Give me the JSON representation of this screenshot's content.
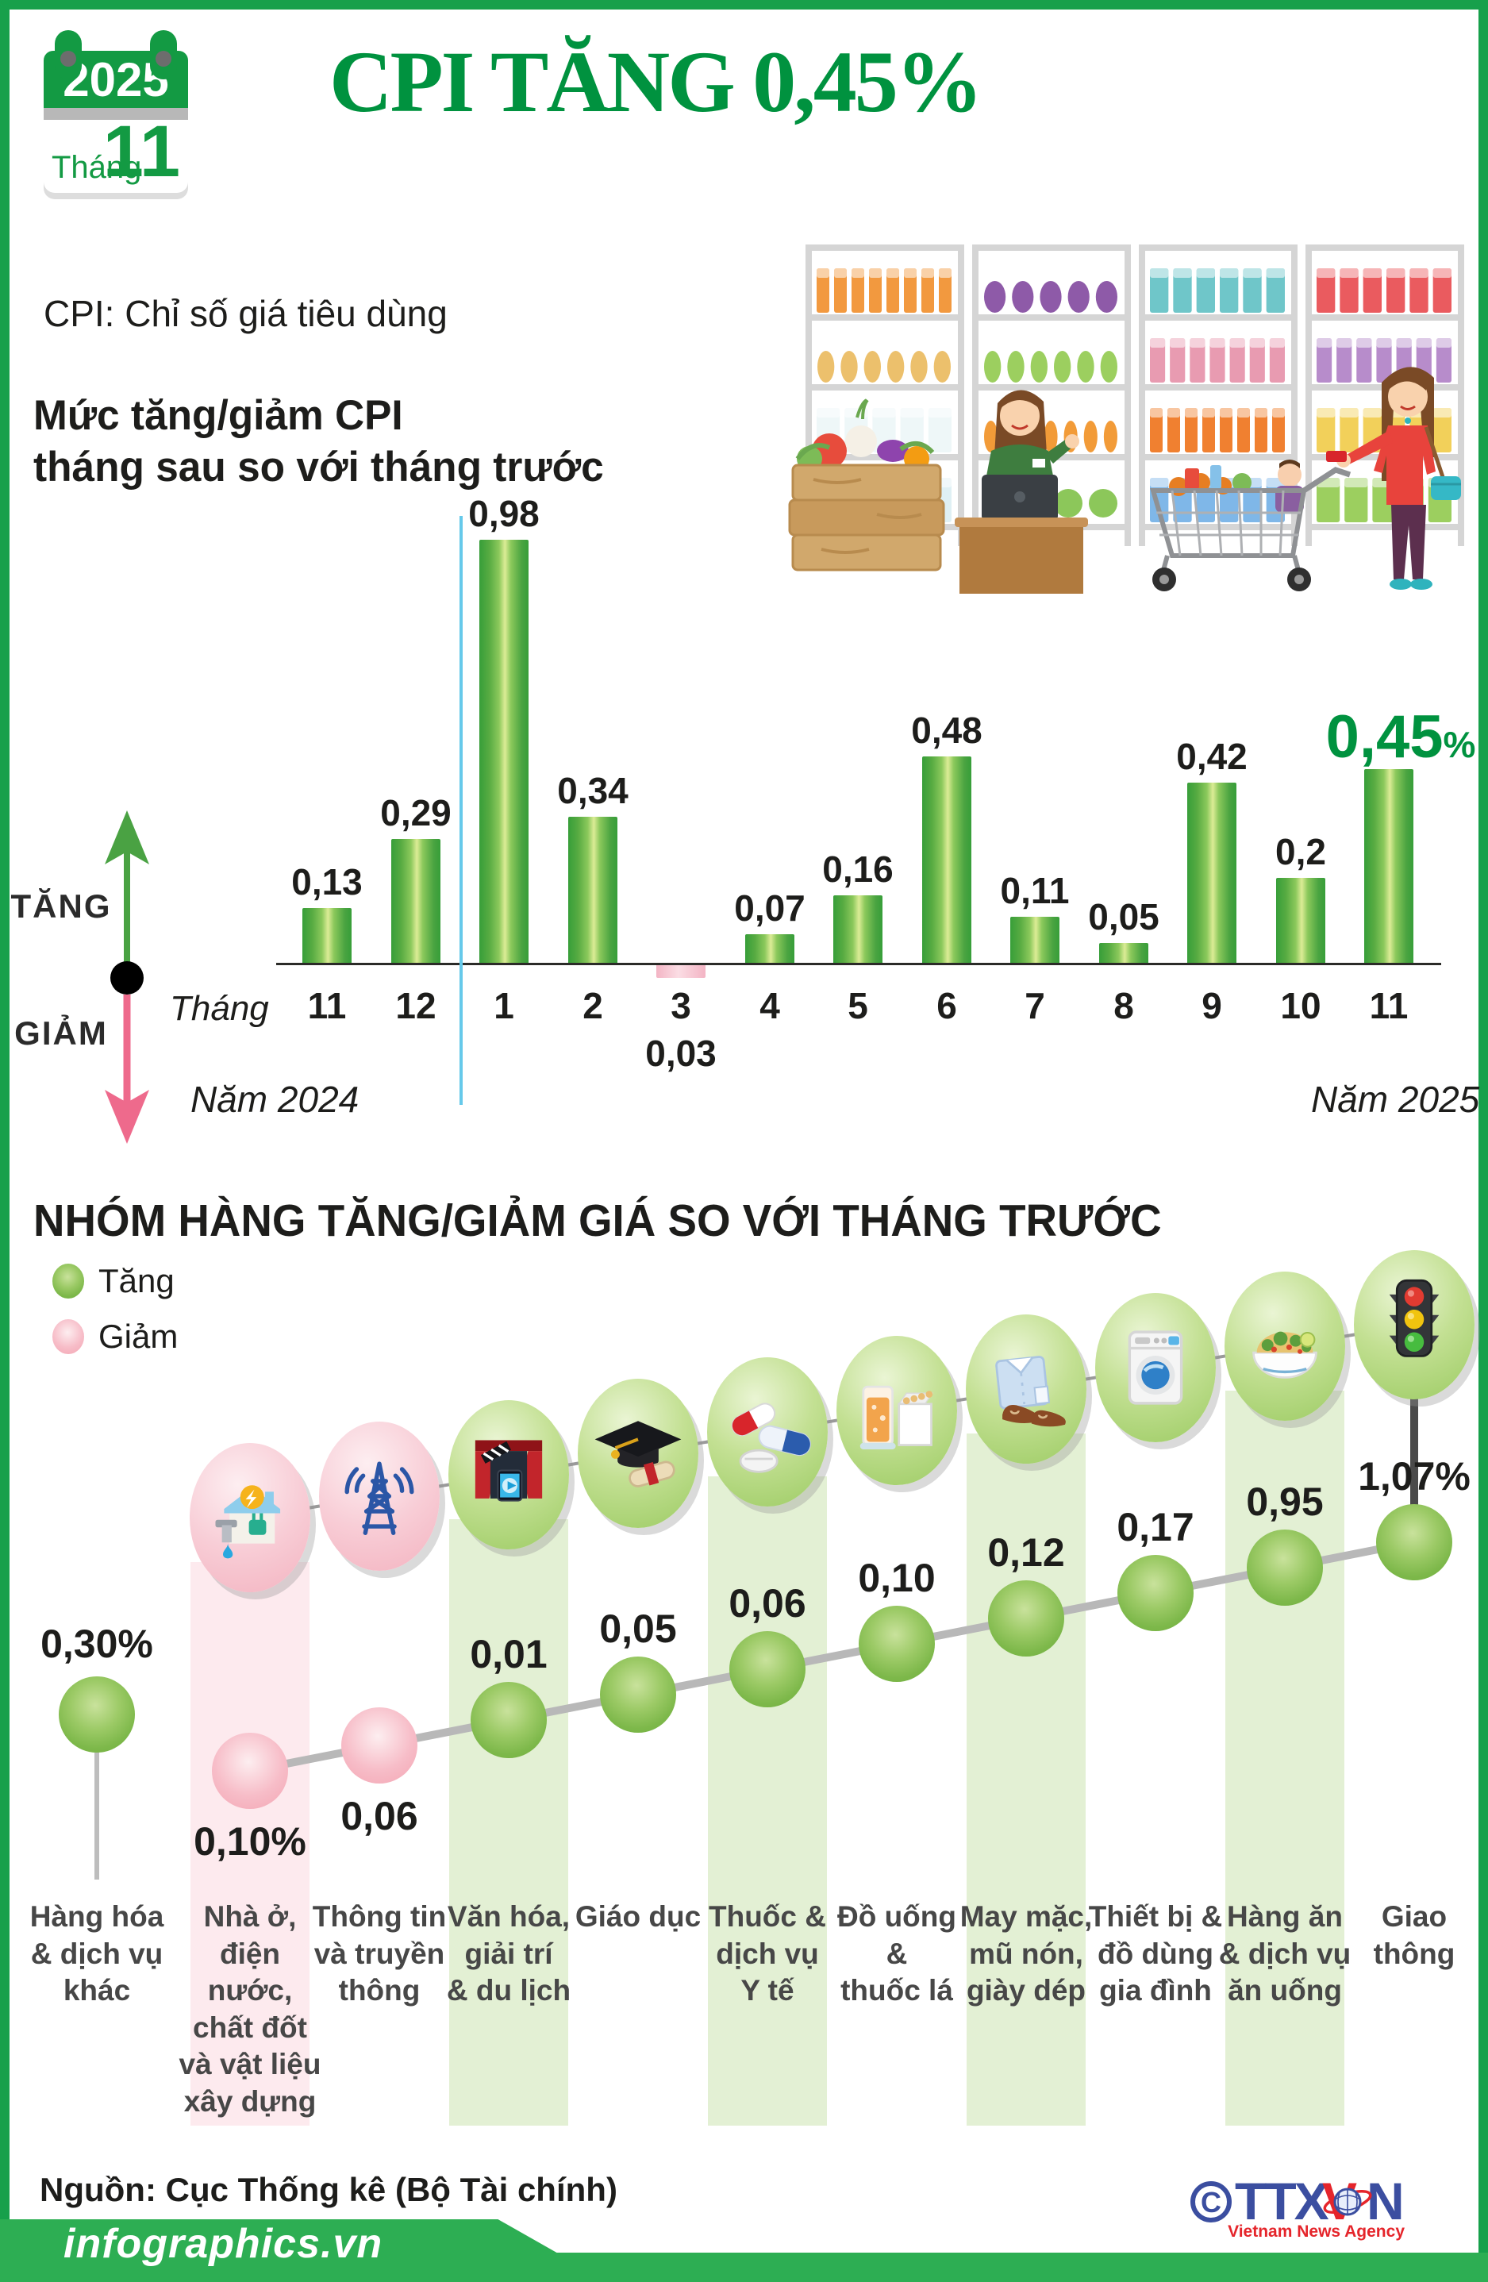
{
  "header": {
    "calendar": {
      "year": "2025",
      "month_word": "Tháng",
      "month_number": "11"
    },
    "title": "CPI TĂNG 0,45%",
    "subtitle": "CPI: Chỉ số giá tiêu dùng"
  },
  "section1": {
    "title_line1": "Mức tăng/giảm CPI",
    "title_line2": "tháng sau so với tháng trước",
    "legend_up": "TĂNG",
    "legend_down": "GIẢM",
    "axis_prefix": "Tháng",
    "year_left": "Năm 2024",
    "year_right": "Năm 2025"
  },
  "section2": {
    "title": "NHÓM HÀNG TĂNG/GIẢM GIÁ SO VỚI THÁNG TRƯỚC",
    "legend_up": "Tăng",
    "legend_down": "Giảm"
  },
  "footer": {
    "source": "Nguồn: Cục Thống kê (Bộ Tài chính)",
    "site": "infographics.vn",
    "copyright": "C",
    "agency_ttx": "TTX",
    "agency_v": "V",
    "agency_n": "N",
    "agency_sub": "Vietnam News Agency"
  },
  "colors": {
    "brand_green": "#00923f",
    "frame_green": "#17a04b",
    "bar_green_light": "#dcec96",
    "bar_green_dark": "#379e39",
    "bar_pink": "#f6c0ce",
    "dot_green": "#7db84a",
    "dot_pink": "#f5aebc",
    "band_green": "#e3f0d4",
    "band_pink": "#fdeaee",
    "divider_blue": "#66c9ea",
    "arrow_up_green": "#4aa243",
    "arrow_down_pink": "#ee6a8c",
    "line_gray": "#b9b9b9",
    "footer_green": "#2dae53",
    "ttxvn_blue": "#3b4ea0",
    "ttxvn_red": "#e5252b"
  },
  "chart_data": [
    {
      "type": "bar",
      "title": "Mức tăng/giảm CPI tháng sau so với tháng trước",
      "unit": "%",
      "xlabel": "Tháng",
      "categories": [
        "11",
        "12",
        "1",
        "2",
        "3",
        "4",
        "5",
        "6",
        "7",
        "8",
        "9",
        "10",
        "11"
      ],
      "values": [
        0.13,
        0.29,
        0.98,
        0.34,
        -0.03,
        0.07,
        0.16,
        0.48,
        0.11,
        0.05,
        0.42,
        0.2,
        0.45
      ],
      "labels": [
        "0,13",
        "0,29",
        "0,98",
        "0,34",
        "0,03",
        "0,07",
        "0,16",
        "0,48",
        "0,11",
        "0,05",
        "0,42",
        "0,2",
        "0,45%"
      ],
      "highlight_index": 12,
      "year_split_after_index": 1,
      "group_annotations": [
        "Năm 2024",
        "Năm 2025"
      ],
      "legend": {
        "up": "TĂNG",
        "down": "GIẢM"
      },
      "ylim": [
        -0.1,
        1.0
      ],
      "grid": false
    },
    {
      "type": "line",
      "title": "NHÓM HÀNG TĂNG/GIẢM GIÁ SO VỚI THÁNG TRƯỚC",
      "legend": [
        {
          "label": "Tăng",
          "color": "#7db84a"
        },
        {
          "label": "Giảm",
          "color": "#f5aebc"
        }
      ],
      "categories": [
        "Hàng hóa & dịch vụ khác",
        "Nhà ở, điện nước, chất đốt và vật liệu xây dựng",
        "Thông tin và truyền thông",
        "Văn hóa, giải trí & du lịch",
        "Giáo dục",
        "Thuốc & dịch vụ Y tế",
        "Đồ uống & thuốc lá",
        "May mặc, mũ nón, giày dép",
        "Thiết bị & đồ dùng gia đình",
        "Hàng ăn & dịch vụ ăn uống",
        "Giao thông"
      ],
      "category_label_lines": [
        [
          "Hàng hóa",
          "& dịch vụ",
          "khác"
        ],
        [
          "Nhà ở,",
          "điện",
          "nước,",
          "chất đốt",
          "và vật liệu",
          "xây dựng"
        ],
        [
          "Thông tin",
          "và truyền",
          "thông"
        ],
        [
          "Văn hóa,",
          "giải trí",
          "& du lịch"
        ],
        [
          "Giáo dục"
        ],
        [
          "Thuốc &",
          "dịch vụ",
          "Y tế"
        ],
        [
          "Đồ uống",
          "&",
          "thuốc lá"
        ],
        [
          "May mặc,",
          "mũ nón,",
          "giày dép"
        ],
        [
          "Thiết bị &",
          "đồ dùng",
          "gia đình"
        ],
        [
          "Hàng ăn",
          "& dịch vụ",
          "ăn uống"
        ],
        [
          "Giao",
          "thông"
        ]
      ],
      "values": [
        0.3,
        -0.1,
        -0.06,
        0.01,
        0.05,
        0.06,
        0.1,
        0.12,
        0.17,
        0.95,
        1.07
      ],
      "labels": [
        "0,30%",
        "0,10%",
        "0,06",
        "0,01",
        "0,05",
        "0,06",
        "0,10",
        "0,12",
        "0,17",
        "0,95",
        "1,07%"
      ],
      "directions": [
        "up",
        "down",
        "down",
        "up",
        "up",
        "up",
        "up",
        "up",
        "up",
        "up",
        "up"
      ],
      "icons": [
        null,
        "housing-utilities-icon",
        "telecom-tower-icon",
        "culture-entertainment-icon",
        "education-icon",
        "medicine-icon",
        "beverage-tobacco-icon",
        "apparel-icon",
        "household-appliance-icon",
        "food-dining-icon",
        "traffic-light-icon"
      ],
      "banded_columns": {
        "pink": [
          1
        ],
        "green": [
          3,
          5,
          7,
          9
        ]
      }
    }
  ]
}
